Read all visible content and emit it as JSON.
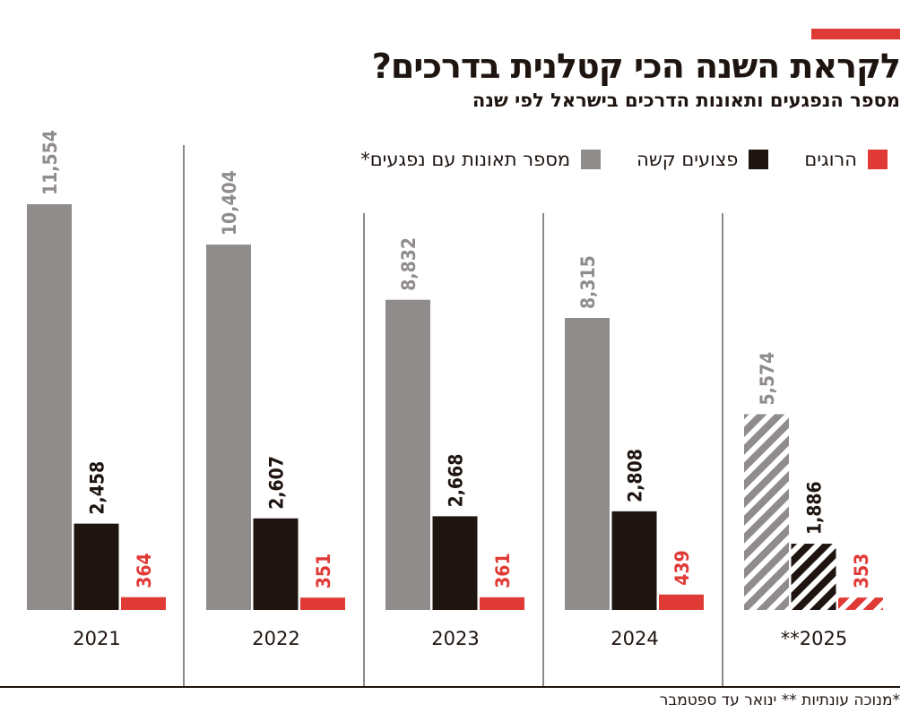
{
  "title": "לקראת השנה הכי קטלנית בדרכים?",
  "subtitle": "מספר הנפגעים ותאונות הדרכים בישראל לפי שנה",
  "footnote": "*מנוכה עונתיות ** ינואר עד ספטמבר",
  "colors": {
    "accidents": "#8f8c8b",
    "seriously_injured": "#1e1410",
    "killed": "#e03a36"
  },
  "chart_data": {
    "type": "bar",
    "title": "לקראת השנה הכי קטלנית בדרכים?",
    "subtitle": "מספר הנפגעים ותאונות הדרכים בישראל לפי שנה",
    "categories": [
      "2021",
      "2022",
      "2023",
      "2024",
      "**2025"
    ],
    "series": [
      {
        "name": "מספר תאונות עם נפגעים*",
        "color": "#8f8c8b",
        "values": [
          11554,
          10404,
          8832,
          8315,
          5574
        ]
      },
      {
        "name": "פצועים קשה",
        "color": "#1e1410",
        "values": [
          2458,
          2607,
          2668,
          2808,
          1886
        ]
      },
      {
        "name": "הרוגים",
        "color": "#e03a36",
        "values": [
          364,
          351,
          361,
          439,
          353
        ]
      }
    ],
    "value_labels": [
      [
        "11,554",
        "10,404",
        "8,832",
        "8,315",
        "5,574"
      ],
      [
        "2,458",
        "2,607",
        "2,668",
        "2,808",
        "1,886"
      ],
      [
        "364",
        "351",
        "361",
        "439",
        "353"
      ]
    ],
    "partial_year_hatched": "**2025",
    "legend_position": "top-right",
    "grid": false,
    "ylim": [
      0,
      11554
    ]
  }
}
